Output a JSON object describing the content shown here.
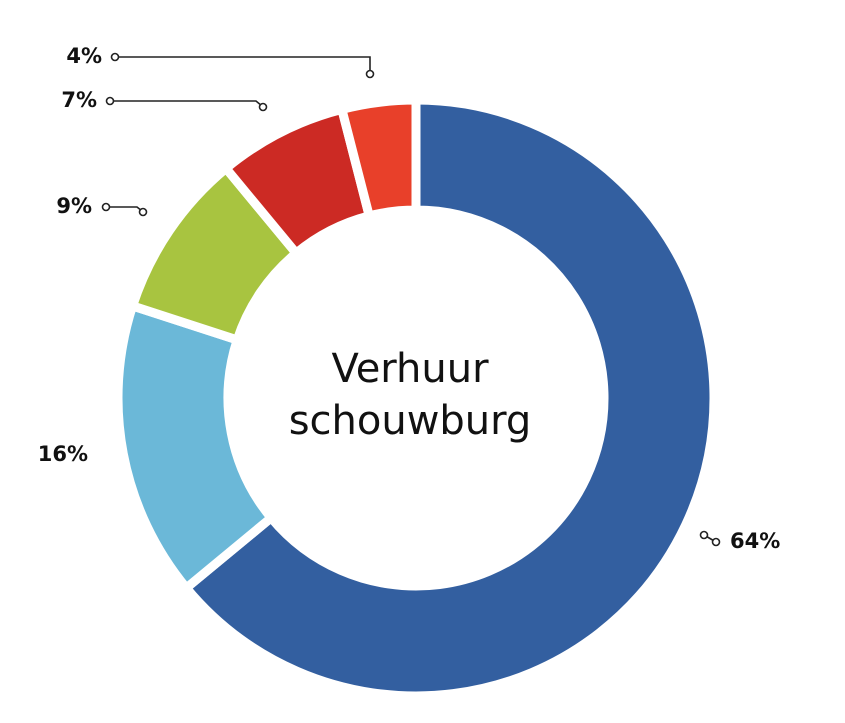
{
  "chart_data": {
    "type": "donut",
    "center_label_lines": [
      "Verhuur",
      "schouwburg"
    ],
    "values": [
      64,
      16,
      9,
      7,
      4
    ],
    "value_labels": [
      "64%",
      "16%",
      "9%",
      "7%",
      "4%"
    ],
    "colors": [
      "#335fa0",
      "#6bb8d8",
      "#a8c440",
      "#cc2a24",
      "#e8402a"
    ]
  }
}
